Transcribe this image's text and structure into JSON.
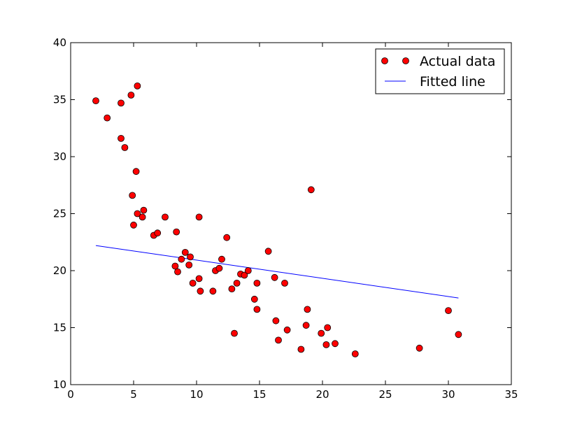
{
  "chart_data": {
    "type": "scatter",
    "title": "",
    "xlabel": "",
    "ylabel": "",
    "xlim": [
      0,
      35
    ],
    "ylim": [
      10,
      40
    ],
    "xticks": [
      0,
      5,
      10,
      15,
      20,
      25,
      30,
      35
    ],
    "yticks": [
      10,
      15,
      20,
      25,
      30,
      35,
      40
    ],
    "grid": false,
    "legend_position": "top-right",
    "series": [
      {
        "name": "Actual data",
        "kind": "markers",
        "color": "#ff0000",
        "points": [
          [
            2.0,
            34.9
          ],
          [
            2.9,
            33.4
          ],
          [
            4.0,
            34.7
          ],
          [
            4.8,
            35.4
          ],
          [
            5.3,
            36.2
          ],
          [
            4.0,
            31.6
          ],
          [
            4.3,
            30.8
          ],
          [
            5.2,
            28.7
          ],
          [
            4.9,
            26.6
          ],
          [
            5.3,
            25.0
          ],
          [
            5.8,
            25.3
          ],
          [
            5.7,
            24.7
          ],
          [
            5.0,
            24.0
          ],
          [
            6.6,
            23.1
          ],
          [
            6.9,
            23.3
          ],
          [
            7.5,
            24.7
          ],
          [
            8.4,
            23.4
          ],
          [
            8.3,
            20.4
          ],
          [
            8.5,
            19.9
          ],
          [
            8.8,
            21.0
          ],
          [
            9.1,
            21.6
          ],
          [
            9.5,
            21.2
          ],
          [
            9.4,
            20.5
          ],
          [
            9.7,
            18.9
          ],
          [
            10.2,
            24.7
          ],
          [
            10.2,
            19.3
          ],
          [
            10.3,
            18.2
          ],
          [
            11.3,
            18.2
          ],
          [
            11.5,
            20.0
          ],
          [
            11.8,
            20.2
          ],
          [
            12.0,
            21.0
          ],
          [
            12.4,
            22.9
          ],
          [
            12.8,
            18.4
          ],
          [
            13.0,
            14.5
          ],
          [
            13.2,
            18.9
          ],
          [
            13.5,
            19.7
          ],
          [
            13.8,
            19.6
          ],
          [
            14.1,
            20.0
          ],
          [
            14.6,
            17.5
          ],
          [
            14.8,
            16.6
          ],
          [
            14.8,
            18.9
          ],
          [
            15.7,
            21.7
          ],
          [
            16.2,
            19.4
          ],
          [
            16.3,
            15.6
          ],
          [
            16.5,
            13.9
          ],
          [
            17.0,
            18.9
          ],
          [
            17.2,
            14.8
          ],
          [
            18.3,
            13.1
          ],
          [
            18.7,
            15.2
          ],
          [
            18.8,
            16.6
          ],
          [
            19.1,
            27.1
          ],
          [
            19.9,
            14.5
          ],
          [
            20.3,
            13.5
          ],
          [
            20.4,
            15.0
          ],
          [
            21.0,
            13.6
          ],
          [
            22.6,
            12.7
          ],
          [
            27.7,
            13.2
          ],
          [
            30.0,
            16.5
          ],
          [
            30.8,
            14.4
          ]
        ]
      },
      {
        "name": "Fitted line",
        "kind": "line",
        "color": "#0000ff",
        "points": [
          [
            2.0,
            22.2
          ],
          [
            30.8,
            17.6
          ]
        ]
      }
    ]
  }
}
